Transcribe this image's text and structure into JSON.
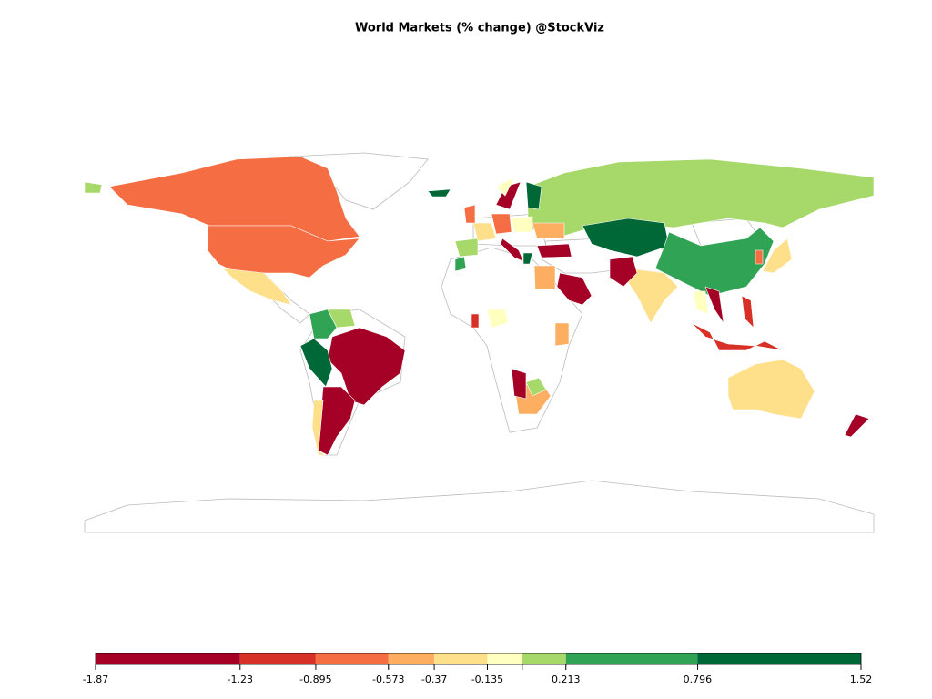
{
  "chart_data": {
    "type": "choropleth",
    "title": "World Markets (% change) @StockViz",
    "breaks": [
      -1.87,
      -1.23,
      -0.895,
      -0.573,
      -0.37,
      -0.135,
      0.02,
      0.213,
      0.796,
      1.52
    ],
    "colors": [
      "#a50026",
      "#d73027",
      "#f46d43",
      "#fdae61",
      "#fee08b",
      "#ffffbf",
      "#a6d96a",
      "#31a354",
      "#006837"
    ],
    "ticks": [
      -1.87,
      -1.23,
      -0.895,
      -0.573,
      -0.37,
      -0.135,
      0.213,
      0.796,
      1.52
    ],
    "region_values": [
      -0.6,
      -0.6,
      0.1,
      -0.2,
      -1.5,
      -1.5,
      -0.3,
      1.0,
      0.5,
      0.1,
      0.1,
      1.2,
      0.5,
      -0.3,
      -1.5,
      -1.5,
      -0.5,
      -1.5,
      -0.2,
      -0.9,
      -0.9,
      -0.2,
      -0.8,
      -1.3,
      -0.1,
      -1.3,
      -0.5,
      -1.3,
      0.1,
      -0.4,
      -0.1,
      -1.0,
      0.3,
      0.1,
      -0.3,
      -0.7,
      -0.6,
      -1.5,
      1.2,
      -0.1,
      -0.1,
      -1.4,
      1.0,
      -0.4,
      1.2
    ]
  }
}
